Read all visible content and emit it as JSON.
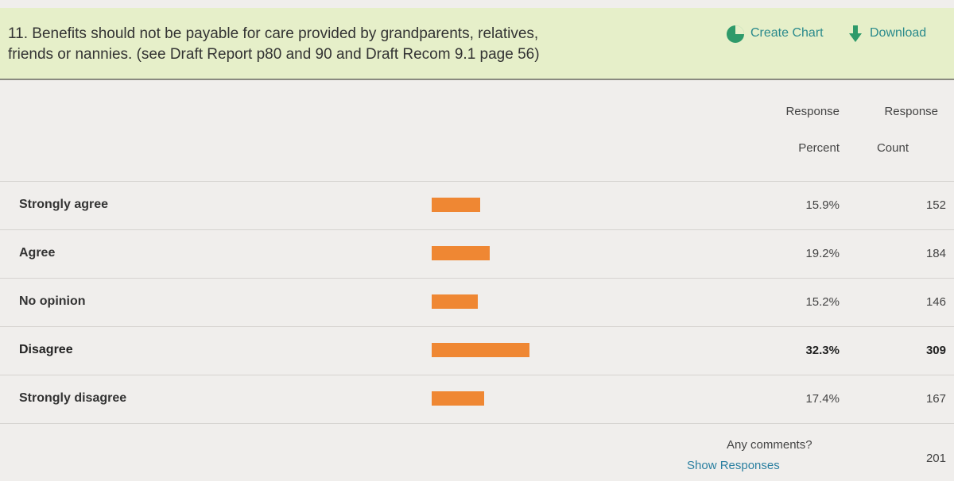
{
  "header": {
    "title_lines": [
      "11. Benefits should not be payable for care provided by grandparents, relatives,",
      "friends or nannies. (see Draft Report p80 and 90 and Draft Recom 9.1 page 56)"
    ],
    "create_chart": "Create Chart",
    "download": "Download"
  },
  "table": {
    "columns": [
      [
        "Response",
        "Percent"
      ],
      [
        "Response",
        "Count"
      ]
    ],
    "rows": [
      {
        "label": "Strongly agree",
        "percent": 15.9,
        "percent_label": "15.9%",
        "count": 152
      },
      {
        "label": "Agree",
        "percent": 19.2,
        "percent_label": "19.2%",
        "count": 184
      },
      {
        "label": "No opinion",
        "percent": 15.2,
        "percent_label": "15.2%",
        "count": 146
      },
      {
        "label": "Disagree",
        "percent": 32.3,
        "percent_label": "32.3%",
        "count": 309
      },
      {
        "label": "Strongly disagree",
        "percent": 17.4,
        "percent_label": "17.4%",
        "count": 167
      }
    ],
    "comments": {
      "label": "Any comments?",
      "link": "Show Responses",
      "count": 201
    }
  }
}
